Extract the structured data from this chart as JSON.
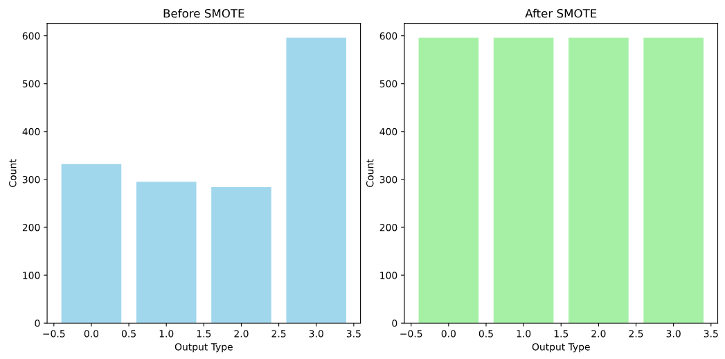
{
  "chart_data": [
    {
      "type": "bar",
      "title": "Before SMOTE",
      "xlabel": "Output Type",
      "ylabel": "Count",
      "x": [
        0,
        1,
        2,
        3
      ],
      "values": [
        332,
        295,
        284,
        596
      ],
      "color": "#a1d7ed",
      "xlim": [
        -0.59,
        3.59
      ],
      "xticks": [
        {
          "value": -0.5,
          "label": "−0.5"
        },
        {
          "value": 0,
          "label": "0.0"
        },
        {
          "value": 0.5,
          "label": "0.5"
        },
        {
          "value": 1,
          "label": "1.0"
        },
        {
          "value": 1.5,
          "label": "1.5"
        },
        {
          "value": 2,
          "label": "2.0"
        },
        {
          "value": 2.5,
          "label": "2.5"
        },
        {
          "value": 3,
          "label": "3.0"
        },
        {
          "value": 3.5,
          "label": "3.5"
        }
      ],
      "ylim": [
        0,
        626
      ],
      "yticks": [
        0,
        100,
        200,
        300,
        400,
        500,
        600
      ]
    },
    {
      "type": "bar",
      "title": "After SMOTE",
      "xlabel": "Output Type",
      "ylabel": "Count",
      "x": [
        0,
        1,
        2,
        3
      ],
      "values": [
        596,
        596,
        596,
        596
      ],
      "color": "#a6f0a6",
      "xlim": [
        -0.59,
        3.59
      ],
      "xticks": [
        {
          "value": -0.5,
          "label": "−0.5"
        },
        {
          "value": 0,
          "label": "0.0"
        },
        {
          "value": 0.5,
          "label": "0.5"
        },
        {
          "value": 1,
          "label": "1.0"
        },
        {
          "value": 1.5,
          "label": "1.5"
        },
        {
          "value": 2,
          "label": "2.0"
        },
        {
          "value": 2.5,
          "label": "2.5"
        },
        {
          "value": 3,
          "label": "3.0"
        },
        {
          "value": 3.5,
          "label": "3.5"
        }
      ],
      "ylim": [
        0,
        626
      ],
      "yticks": [
        0,
        100,
        200,
        300,
        400,
        500,
        600
      ]
    }
  ]
}
